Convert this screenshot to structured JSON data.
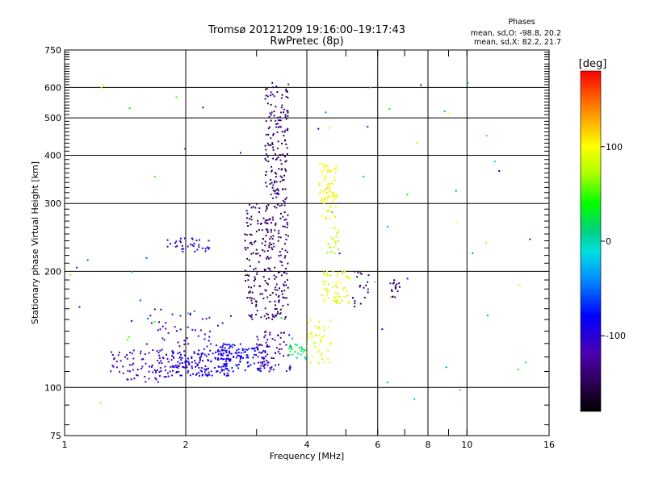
{
  "chart_data": {
    "type": "scatter",
    "title": "Tromsø 20121209 19:16:00–19:17:43",
    "subtitle": "RwPretec (8p)",
    "xlabel": "Frequency [MHz]",
    "ylabel": "Stationary phase Virtual Height [km]",
    "x_scale": "log",
    "y_scale": "log",
    "xlim": [
      1,
      16
    ],
    "ylim": [
      75,
      750
    ],
    "x_ticks": [
      1,
      2,
      4,
      6,
      8,
      10,
      16
    ],
    "x_tick_labels": [
      "1",
      "2",
      "4",
      "6",
      "8",
      "10",
      "16"
    ],
    "y_ticks": [
      75,
      100,
      200,
      300,
      400,
      500,
      600,
      750
    ],
    "y_tick_labels": [
      "75",
      "100",
      "200",
      "300",
      "400",
      "500",
      "600",
      "750"
    ],
    "x_gridlines": [
      2,
      4,
      6,
      8,
      10
    ],
    "y_gridlines": [
      100,
      200,
      300,
      400,
      500,
      600
    ],
    "grid": true,
    "stats": {
      "heading": "Phases",
      "line_o": "mean, sd,O: -98.8, 20.2",
      "line_x": "mean, sd,X:  82.2, 21.7"
    },
    "colorbar": {
      "label": "[deg]",
      "min": -180,
      "max": 180,
      "ticks": [
        100,
        0,
        -100
      ],
      "tick_labels": [
        "100",
        "0",
        "-100"
      ],
      "colormap": "rainbow"
    },
    "clusters": [
      {
        "f": [
          1.3,
          1.85
        ],
        "h": [
          103,
          125
        ],
        "ph": [
          -130,
          -100
        ],
        "n": 90
      },
      {
        "f": [
          1.85,
          2.6
        ],
        "h": [
          107,
          125
        ],
        "ph": [
          -120,
          -80
        ],
        "n": 160
      },
      {
        "f": [
          2.4,
          3.2
        ],
        "h": [
          110,
          130
        ],
        "ph": [
          -100,
          -70
        ],
        "n": 110
      },
      {
        "f": [
          1.6,
          2.6
        ],
        "h": [
          125,
          160
        ],
        "ph": [
          -125,
          -95
        ],
        "n": 50
      },
      {
        "f": [
          3.0,
          3.7
        ],
        "h": [
          110,
          140
        ],
        "ph": [
          -140,
          -110
        ],
        "n": 70
      },
      {
        "f": [
          1.8,
          2.3
        ],
        "h": [
          225,
          245
        ],
        "ph": [
          -120,
          -90
        ],
        "n": 35
      },
      {
        "f": [
          2.8,
          3.2
        ],
        "h": [
          150,
          300
        ],
        "ph": [
          -160,
          -130
        ],
        "n": 110
      },
      {
        "f": [
          3.15,
          3.6
        ],
        "h": [
          150,
          620
        ],
        "ph": [
          -160,
          -120
        ],
        "n": 300
      },
      {
        "f": [
          3.6,
          4.0
        ],
        "h": [
          118,
          130
        ],
        "ph": [
          -10,
          40
        ],
        "n": 25
      },
      {
        "f": [
          4.0,
          4.6
        ],
        "h": [
          115,
          150
        ],
        "ph": [
          80,
          100
        ],
        "n": 45
      },
      {
        "f": [
          4.3,
          4.75
        ],
        "h": [
          270,
          380
        ],
        "ph": [
          90,
          115
        ],
        "n": 80
      },
      {
        "f": [
          4.4,
          5.1
        ],
        "h": [
          165,
          200
        ],
        "ph": [
          70,
          110
        ],
        "n": 60
      },
      {
        "f": [
          4.5,
          4.8
        ],
        "h": [
          220,
          260
        ],
        "ph": [
          60,
          90
        ],
        "n": 20
      },
      {
        "f": [
          5.2,
          5.7
        ],
        "h": [
          160,
          200
        ],
        "ph": [
          -150,
          -130
        ],
        "n": 20
      },
      {
        "f": [
          6.4,
          6.9
        ],
        "h": [
          170,
          190
        ],
        "ph": [
          -150,
          -130
        ],
        "n": 18
      },
      {
        "f": [
          1.0,
          15.0
        ],
        "h": [
          90,
          620
        ],
        "ph": [
          -130,
          120
        ],
        "n": 70
      }
    ]
  }
}
